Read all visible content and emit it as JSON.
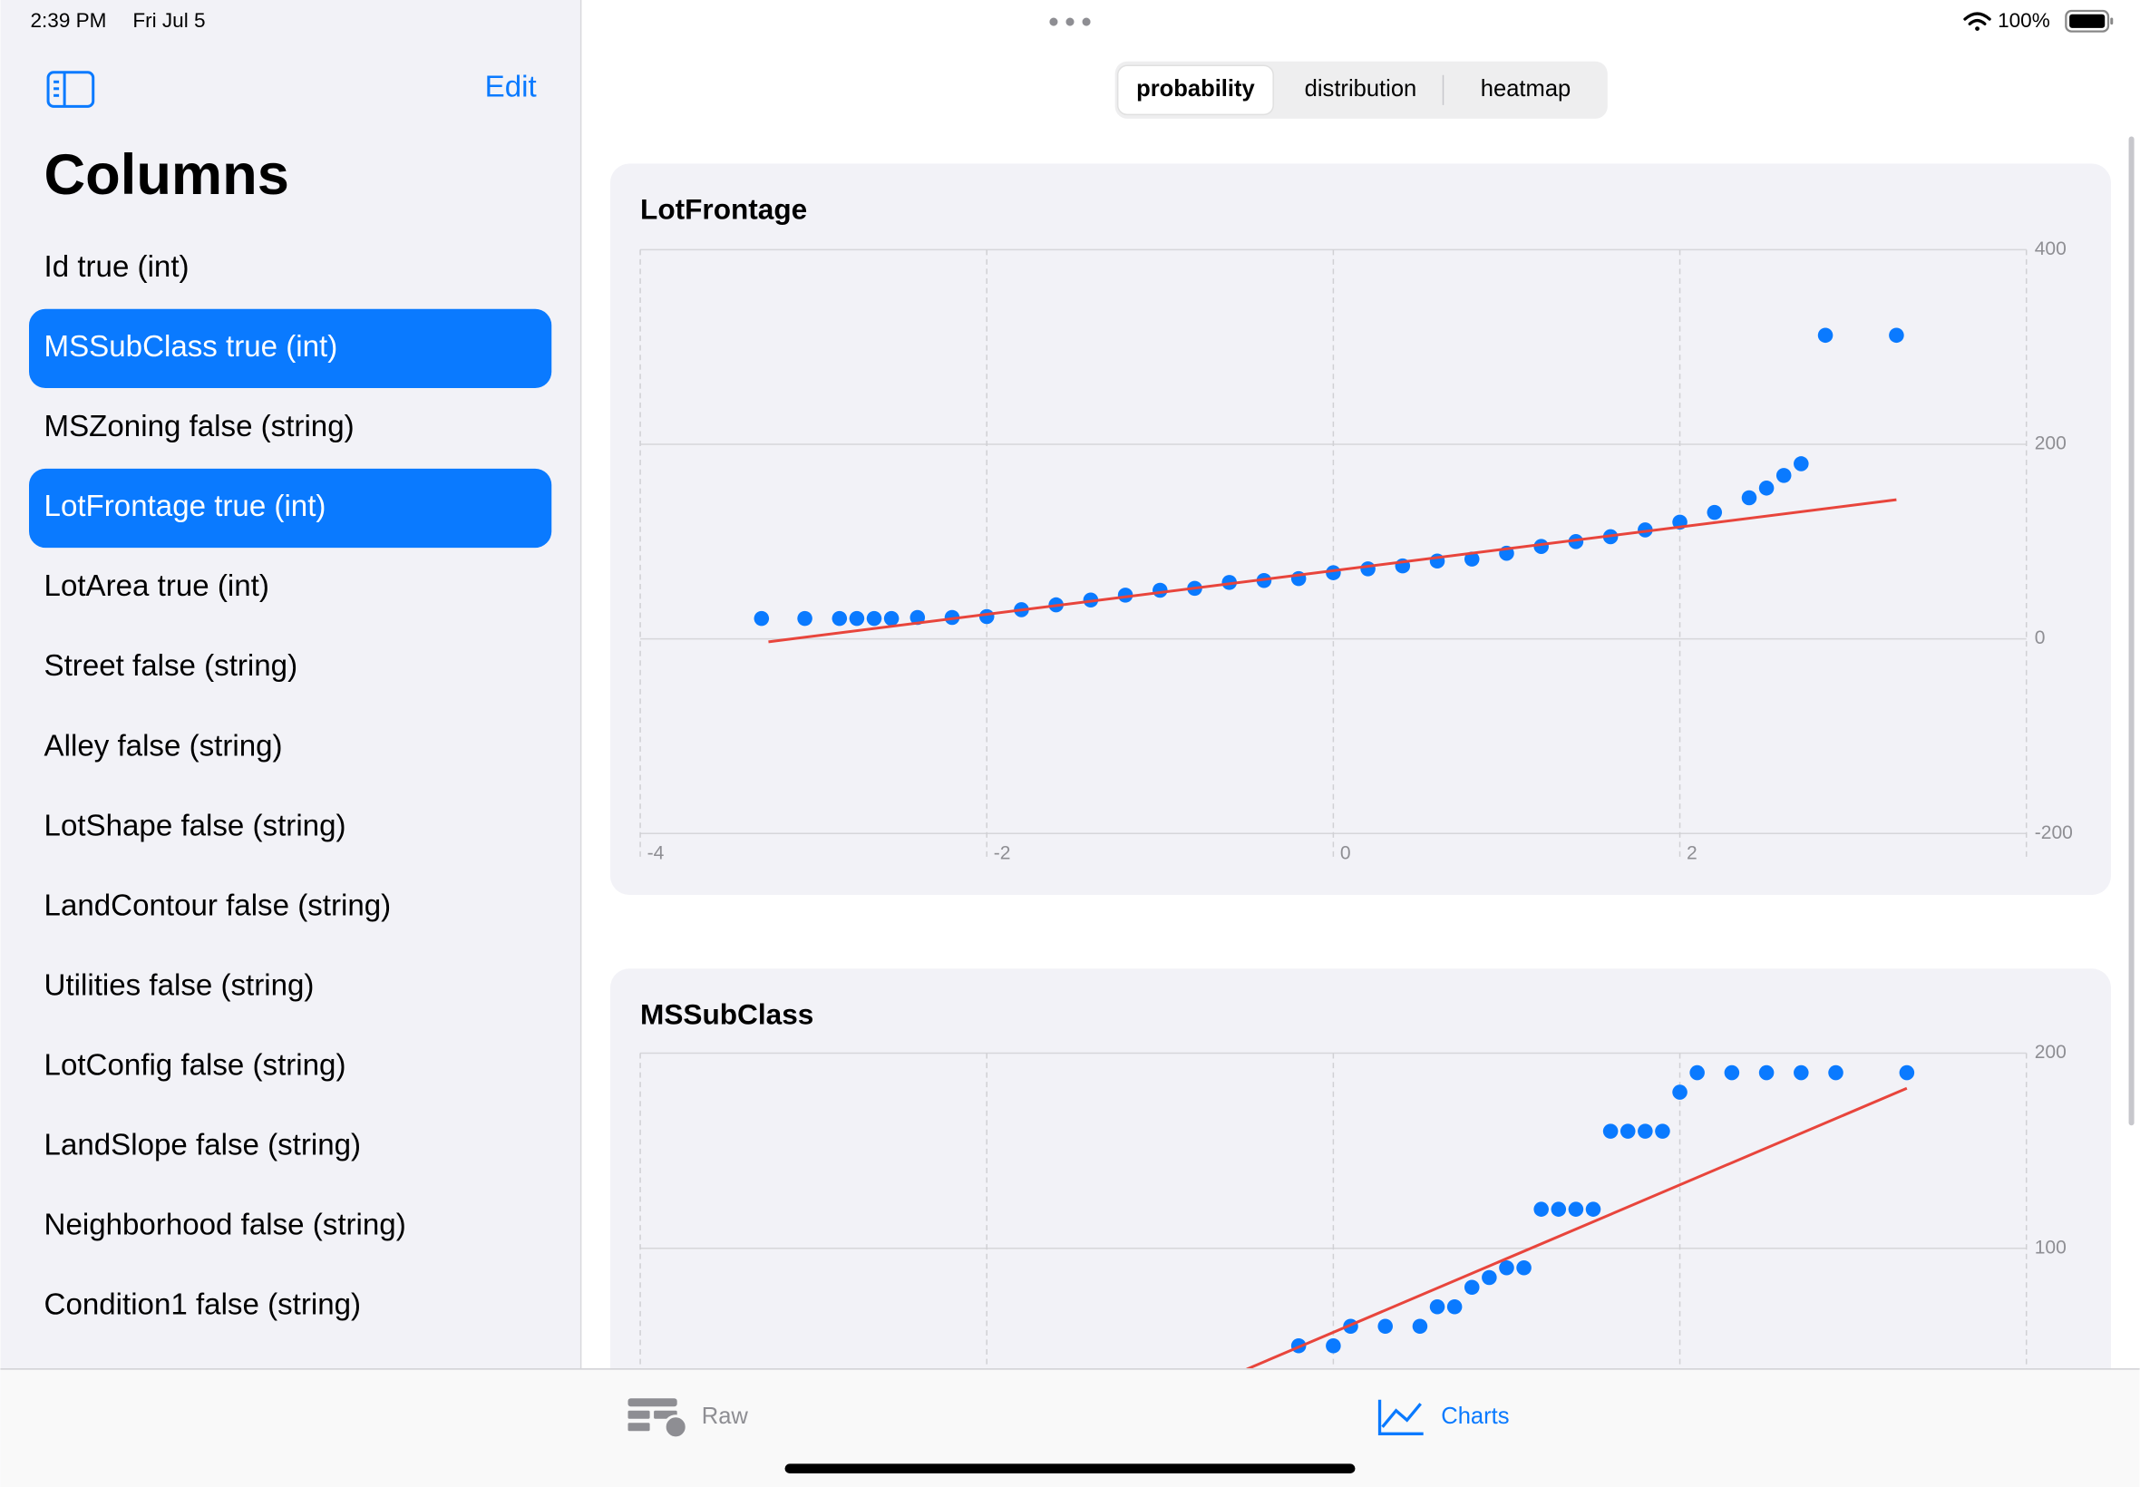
{
  "status_bar": {
    "time": "2:39 PM",
    "date": "Fri Jul 5",
    "battery": "100%"
  },
  "sidebar": {
    "edit": "Edit",
    "title": "Columns",
    "items": [
      "Id true (int)",
      "MSSubClass true (int)",
      "MSZoning false (string)",
      "LotFrontage true (int)",
      "LotArea true (int)",
      "Street false (string)",
      "Alley false (string)",
      "LotShape false (string)",
      "LandContour false (string)",
      "Utilities false (string)",
      "LotConfig false (string)",
      "LandSlope false (string)",
      "Neighborhood false (string)",
      "Condition1 false (string)"
    ],
    "selected": [
      1,
      3
    ]
  },
  "segments": {
    "items": [
      "probability",
      "distribution",
      "heatmap"
    ],
    "selected": 0
  },
  "charts": [
    {
      "title": "LotFrontage",
      "type": "scatter",
      "color": "#0a7aff",
      "fit_color": "#e8453c",
      "xlim": [
        -4,
        4
      ],
      "xticks": [
        -4,
        -2,
        0,
        2
      ],
      "ylim": [
        -200,
        400
      ],
      "yticks": [
        -200,
        0,
        200,
        400
      ],
      "x": [
        -3.3,
        -3.05,
        -2.85,
        -2.75,
        -2.65,
        -2.55,
        -2.4,
        -2.2,
        -2.0,
        -1.8,
        -1.6,
        -1.4,
        -1.2,
        -1.0,
        -0.8,
        -0.6,
        -0.4,
        -0.2,
        0,
        0.2,
        0.4,
        0.6,
        0.8,
        1.0,
        1.2,
        1.4,
        1.6,
        1.8,
        2.0,
        2.2,
        2.4,
        2.5,
        2.6,
        2.7,
        2.84,
        3.25
      ],
      "y": [
        21,
        21,
        21,
        21,
        21,
        21,
        22,
        22,
        23,
        30,
        35,
        40,
        45,
        50,
        52,
        58,
        60,
        62,
        68,
        72,
        75,
        80,
        82,
        88,
        95,
        100,
        105,
        112,
        120,
        130,
        145,
        155,
        168,
        180,
        312,
        312
      ],
      "fit": {
        "x": [
          -3.26,
          3.25
        ],
        "y": [
          -3,
          143
        ]
      }
    },
    {
      "title": "MSSubClass",
      "type": "scatter",
      "color": "#0a7aff",
      "fit_color": "#e8453c",
      "xlim": [
        -4,
        4
      ],
      "xticks": [
        -4,
        -2,
        0,
        2
      ],
      "ylim": [
        0,
        200
      ],
      "yticks": [
        100,
        200
      ],
      "x": [
        -0.2,
        0,
        0.1,
        0.3,
        0.5,
        0.6,
        0.7,
        0.8,
        0.9,
        1.0,
        1.1,
        1.2,
        1.3,
        1.4,
        1.5,
        1.6,
        1.7,
        1.8,
        1.9,
        2.0,
        2.1,
        2.3,
        2.5,
        2.7,
        2.9,
        3.31
      ],
      "y": [
        50,
        50,
        60,
        60,
        60,
        70,
        70,
        80,
        85,
        90,
        90,
        120,
        120,
        120,
        120,
        160,
        160,
        160,
        160,
        180,
        190,
        190,
        190,
        190,
        190,
        190
      ],
      "fit": {
        "x": [
          -0.5,
          3.31
        ],
        "y": [
          38,
          182
        ]
      }
    }
  ],
  "tab_bar": {
    "items": [
      "Raw",
      "Charts"
    ],
    "selected": 1
  }
}
